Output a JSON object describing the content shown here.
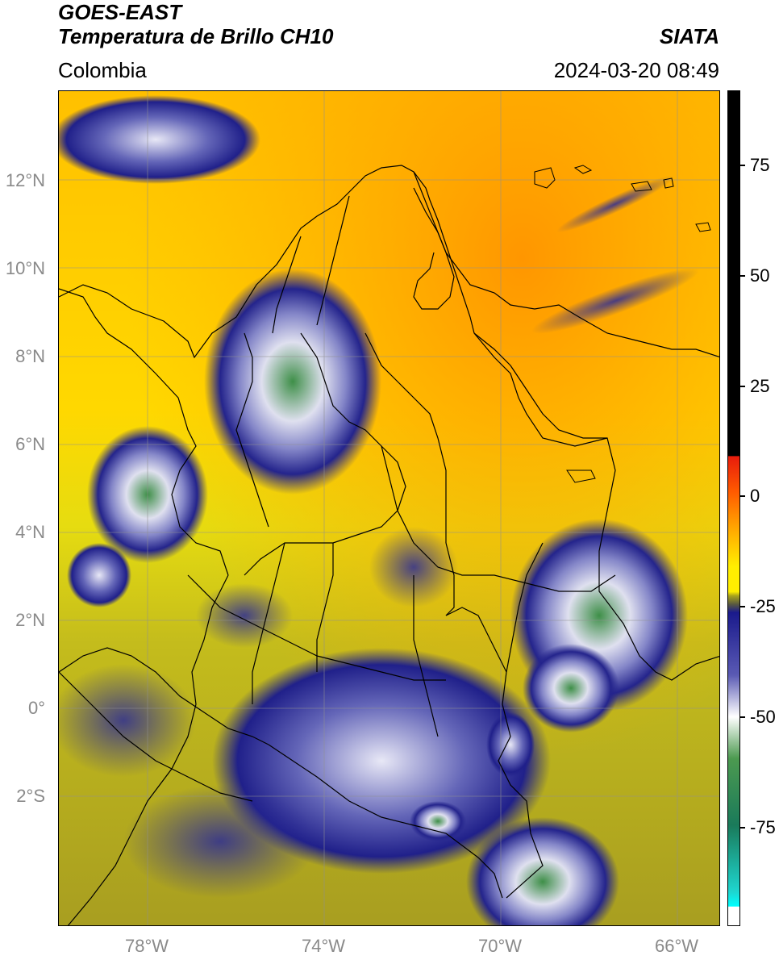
{
  "header": {
    "satellite": "GOES-EAST",
    "product": "Temperatura de Brillo CH10",
    "region": "Colombia",
    "agency": "SIATA",
    "datetime": "2024-03-20 08:49"
  },
  "axes": {
    "lat_labels": [
      "12°N",
      "10°N",
      "8°N",
      "6°N",
      "4°N",
      "2°N",
      "0°",
      "2°S"
    ],
    "lon_labels": [
      "78°W",
      "74°W",
      "70°W",
      "66°W"
    ]
  },
  "colorbar": {
    "labels": [
      "75",
      "50",
      "25",
      "0",
      "-25",
      "-50",
      "-75"
    ],
    "colors": {
      "black": "#000000",
      "red": "#e81c0c",
      "orange": "#ff8c00",
      "yellow": "#ffee00",
      "olive": "#a8a21c",
      "navy": "#1a1a8c",
      "white": "#ffffff",
      "green": "#2e8b3a",
      "cyan": "#1ed6d0"
    }
  },
  "map_colors": {
    "ocean_warm": "#ffa200",
    "land_warm": "#ffd400",
    "mid": "#e6de00",
    "olive": "#b0aa20",
    "cold_blue": "#2a2a9a",
    "very_cold": "#d8daf0",
    "coldest": "#4c9a50"
  }
}
